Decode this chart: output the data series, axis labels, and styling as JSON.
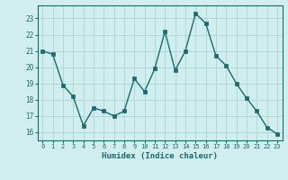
{
  "x": [
    0,
    1,
    2,
    3,
    4,
    5,
    6,
    7,
    8,
    9,
    10,
    11,
    12,
    13,
    14,
    15,
    16,
    17,
    18,
    19,
    20,
    21,
    22,
    23
  ],
  "y": [
    21.0,
    20.8,
    18.9,
    18.2,
    16.4,
    17.5,
    17.3,
    17.0,
    17.3,
    19.3,
    18.5,
    19.9,
    22.2,
    19.8,
    21.0,
    23.3,
    22.7,
    20.7,
    20.1,
    19.0,
    18.1,
    17.3,
    16.3,
    15.9
  ],
  "xlabel": "Humidex (Indice chaleur)",
  "ylim": [
    15.5,
    23.8
  ],
  "xlim": [
    -0.5,
    23.5
  ],
  "yticks": [
    16,
    17,
    18,
    19,
    20,
    21,
    22,
    23
  ],
  "xticks": [
    0,
    1,
    2,
    3,
    4,
    5,
    6,
    7,
    8,
    9,
    10,
    11,
    12,
    13,
    14,
    15,
    16,
    17,
    18,
    19,
    20,
    21,
    22,
    23
  ],
  "line_color": "#1a6b6b",
  "marker_color": "#1a6b6b",
  "bg_color": "#d0eeee",
  "grid_color": "#b0d8d8",
  "font_color": "#1a6b6b",
  "font_family": "monospace"
}
